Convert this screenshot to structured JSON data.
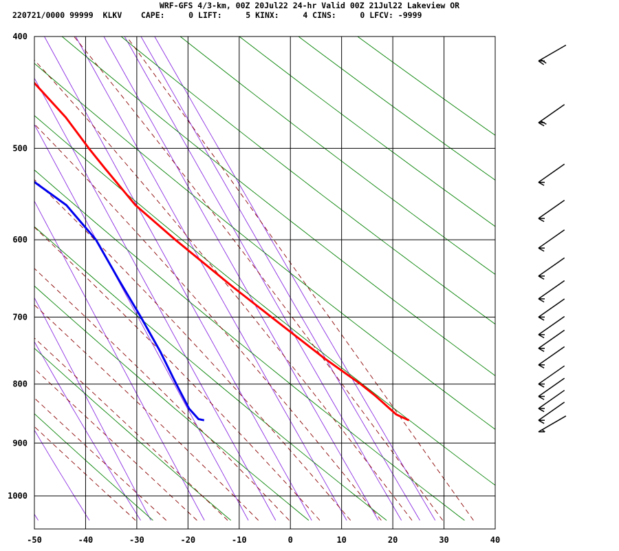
{
  "header": {
    "title": "WRF-GFS 4/3-km, 00Z 20Jul22 24-hr Valid 00Z 21Jul22 Lakeview OR",
    "subline": "220721/0000 99999  KLKV    CAPE:     0 LIFT:     5 KINX:     4 CINS:     0 LFCV: -9999"
  },
  "chart_data": {
    "type": "line",
    "chart_kind": "skew-T log-P sounding",
    "title": "WRF-GFS 4/3-km, 00Z 20Jul22 24-hr Valid 00Z 21Jul22 Lakeview OR",
    "xlabel": "",
    "ylabel": "",
    "x_ticks": [
      -50,
      -40,
      -30,
      -20,
      -10,
      0,
      10,
      20,
      30,
      40
    ],
    "y_ticks": [
      400,
      500,
      600,
      700,
      800,
      900,
      1000
    ],
    "xlim": [
      -50,
      40
    ],
    "ylim": [
      1050,
      400
    ],
    "y_scale": "log (pressure, hPa)",
    "grid": true,
    "series": [
      {
        "role": "temperature",
        "color": "#ff0000",
        "points": [
          {
            "p": 860,
            "t": 31.5
          },
          {
            "p": 850,
            "t": 29.5
          },
          {
            "p": 820,
            "t": 27.0
          },
          {
            "p": 800,
            "t": 25.0
          },
          {
            "p": 760,
            "t": 20.0
          },
          {
            "p": 700,
            "t": 13.0
          },
          {
            "p": 660,
            "t": 8.0
          },
          {
            "p": 600,
            "t": 0.5
          },
          {
            "p": 560,
            "t": -4.5
          },
          {
            "p": 520,
            "t": -7.5
          },
          {
            "p": 500,
            "t": -9.0
          },
          {
            "p": 470,
            "t": -11.0
          },
          {
            "p": 420,
            "t": -16.5
          }
        ]
      },
      {
        "role": "dewpoint",
        "color": "#0000ee",
        "points": [
          {
            "p": 860,
            "t": -8.5
          },
          {
            "p": 858,
            "t": -9.5
          },
          {
            "p": 840,
            "t": -10.5
          },
          {
            "p": 800,
            "t": -11.0
          },
          {
            "p": 750,
            "t": -11.5
          },
          {
            "p": 700,
            "t": -12.5
          },
          {
            "p": 650,
            "t": -13.8
          },
          {
            "p": 600,
            "t": -15.0
          },
          {
            "p": 560,
            "t": -18.0
          },
          {
            "p": 520,
            "t": -25.0
          },
          {
            "p": 500,
            "t": -28.5
          },
          {
            "p": 470,
            "t": -33.5
          },
          {
            "p": 420,
            "t": -42.5
          }
        ]
      }
    ],
    "background_lines": {
      "dry_adiabats": {
        "color": "#008000"
      },
      "moist_adiabats": {
        "color": "#8b0000"
      },
      "mixing_ratio": {
        "color": "#8a2be2"
      }
    },
    "wind_barbs": {
      "color": "#000000",
      "levels": [
        {
          "p": 420,
          "dir": 240,
          "spd": 20
        },
        {
          "p": 475,
          "dir": 235,
          "spd": 20
        },
        {
          "p": 535,
          "dir": 235,
          "spd": 10
        },
        {
          "p": 575,
          "dir": 235,
          "spd": 10
        },
        {
          "p": 610,
          "dir": 235,
          "spd": 10
        },
        {
          "p": 645,
          "dir": 235,
          "spd": 10
        },
        {
          "p": 675,
          "dir": 235,
          "spd": 10
        },
        {
          "p": 700,
          "dir": 235,
          "spd": 10
        },
        {
          "p": 725,
          "dir": 235,
          "spd": 10
        },
        {
          "p": 745,
          "dir": 235,
          "spd": 10
        },
        {
          "p": 770,
          "dir": 235,
          "spd": 10
        },
        {
          "p": 800,
          "dir": 235,
          "spd": 10
        },
        {
          "p": 820,
          "dir": 235,
          "spd": 10
        },
        {
          "p": 840,
          "dir": 235,
          "spd": 10
        },
        {
          "p": 860,
          "dir": 235,
          "spd": 10
        },
        {
          "p": 880,
          "dir": 240,
          "spd": 5
        }
      ]
    }
  }
}
